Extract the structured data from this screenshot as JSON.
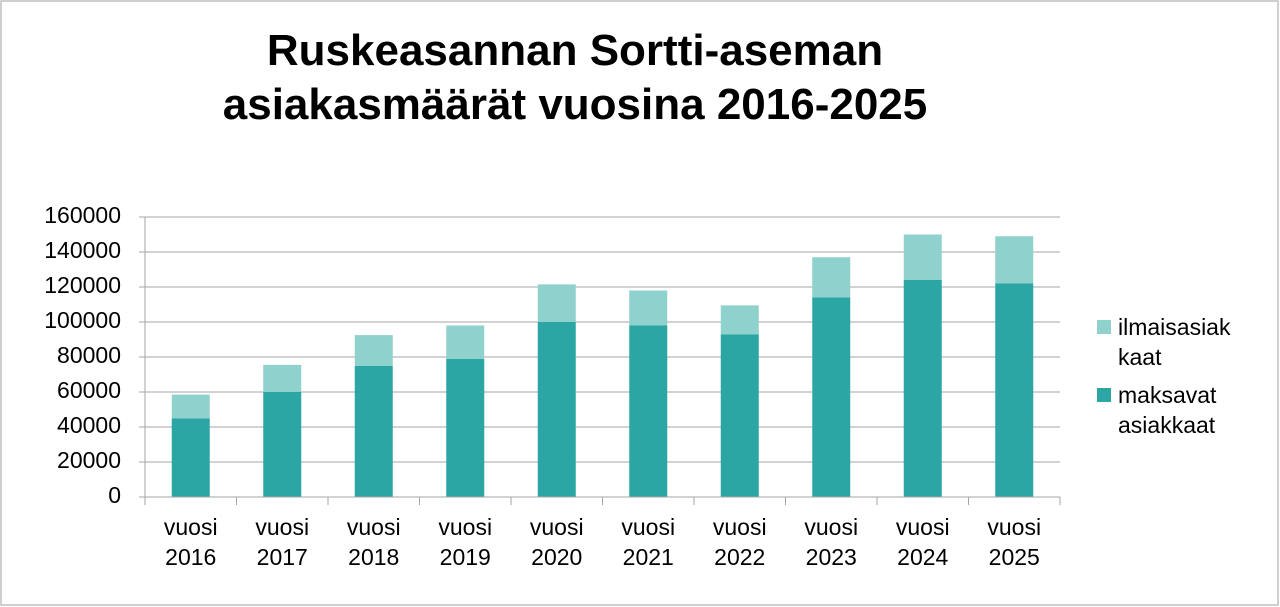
{
  "chart_data": {
    "type": "stacked-bar",
    "title": "Ruskeasannan Sortti-aseman asiakasmäärät vuosina 2016-2025",
    "categories": [
      "vuosi 2016",
      "vuosi 2017",
      "vuosi 2018",
      "vuosi 2019",
      "vuosi 2020",
      "vuosi 2021",
      "vuosi 2022",
      "vuosi 2023",
      "vuosi 2024",
      "vuosi 2025"
    ],
    "series": [
      {
        "name": "maksavat asiakkaat",
        "color": "#2ca6a4",
        "values": [
          45000,
          60000,
          75000,
          79000,
          100000,
          98000,
          93000,
          114000,
          124000,
          122000
        ]
      },
      {
        "name": "ilmaisasiakkaat",
        "color": "#8fd1cc",
        "values": [
          13500,
          15500,
          17500,
          19000,
          21500,
          20000,
          16500,
          23000,
          26000,
          27000
        ]
      }
    ],
    "ylim": [
      0,
      160000
    ],
    "yticks": [
      0,
      20000,
      40000,
      60000,
      80000,
      100000,
      120000,
      140000,
      160000
    ],
    "grid": true,
    "legend": "right"
  }
}
